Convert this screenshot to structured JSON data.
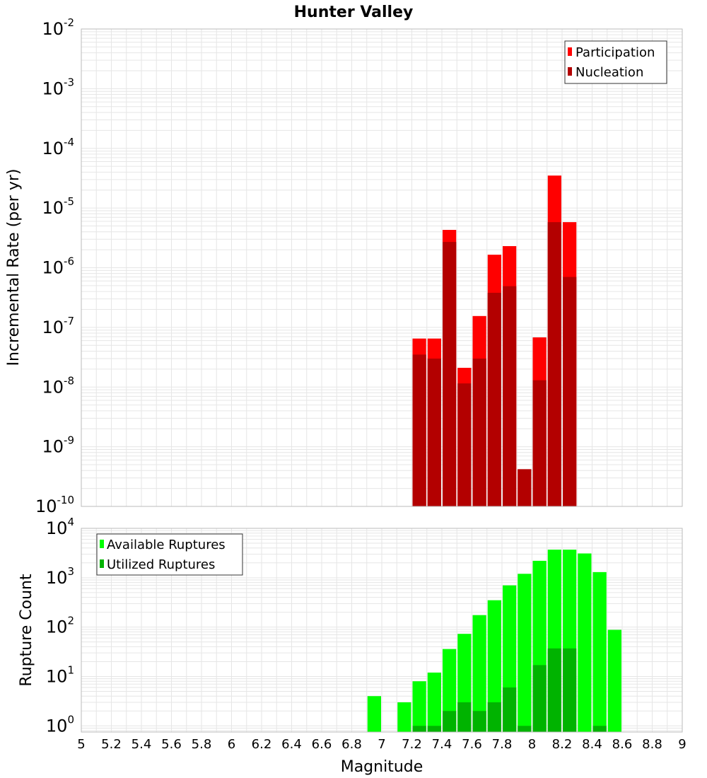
{
  "figure": {
    "title": "Hunter Valley",
    "xlabel": "Magnitude"
  },
  "colors": {
    "participation": "#ff0000",
    "nucleation": "#b30000",
    "available": "#00ff00",
    "utilized": "#00b300",
    "grid": "#e6e6e6",
    "frame": "#bbbbbb"
  },
  "chart_data": [
    {
      "type": "bar",
      "scale": "log",
      "ylabel": "Incremental Rate (per yr)",
      "ylim": [
        1e-10,
        0.01
      ],
      "xlim": [
        5,
        9
      ],
      "bin_width": 0.1,
      "legend": {
        "position": "top-right",
        "entries": [
          "Participation",
          "Nucleation"
        ]
      },
      "series": [
        {
          "name": "Participation",
          "x": [
            7.25,
            7.35,
            7.45,
            7.55,
            7.65,
            7.75,
            7.85,
            7.95,
            8.05,
            8.15,
            8.25
          ],
          "values": [
            6.5e-08,
            6.5e-08,
            4.3e-06,
            2.1e-08,
            1.55e-07,
            1.65e-06,
            2.3e-06,
            4.2e-10,
            6.8e-08,
            3.5e-05,
            5.8e-06
          ]
        },
        {
          "name": "Nucleation",
          "x": [
            7.25,
            7.35,
            7.45,
            7.55,
            7.65,
            7.75,
            7.85,
            7.95,
            8.05,
            8.15,
            8.25
          ],
          "values": [
            3.5e-08,
            3e-08,
            2.7e-06,
            1.15e-08,
            3e-08,
            3.8e-07,
            4.9e-07,
            4.2e-10,
            1.3e-08,
            5.8e-06,
            7e-07
          ]
        }
      ]
    },
    {
      "type": "bar",
      "scale": "log",
      "ylabel": "Rupture Count",
      "ylim": [
        0.75,
        10000.0
      ],
      "xlim": [
        5,
        9
      ],
      "bin_width": 0.1,
      "legend": {
        "position": "top-left",
        "entries": [
          "Available Ruptures",
          "Utilized Ruptures"
        ]
      },
      "series": [
        {
          "name": "Available Ruptures",
          "x": [
            6.95,
            7.15,
            7.25,
            7.35,
            7.45,
            7.55,
            7.65,
            7.75,
            7.85,
            7.95,
            8.05,
            8.15,
            8.25,
            8.35,
            8.45,
            8.55
          ],
          "values": [
            4,
            3,
            8,
            12,
            36,
            73,
            175,
            350,
            700,
            1200,
            2200,
            3700,
            3700,
            3100,
            1300,
            88
          ]
        },
        {
          "name": "Utilized Ruptures",
          "x": [
            7.25,
            7.35,
            7.45,
            7.55,
            7.65,
            7.75,
            7.85,
            7.95,
            8.05,
            8.15,
            8.25,
            8.45
          ],
          "values": [
            1,
            1,
            2,
            3,
            2,
            3,
            6,
            1,
            17,
            37,
            37,
            1
          ]
        }
      ]
    }
  ],
  "x_ticks": [
    "5",
    "5.2",
    "5.4",
    "5.6",
    "5.8",
    "6",
    "6.2",
    "6.4",
    "6.6",
    "6.8",
    "7",
    "7.2",
    "7.4",
    "7.6",
    "7.8",
    "8",
    "8.2",
    "8.4",
    "8.6",
    "8.8",
    "9"
  ],
  "top_y_ticks": [
    {
      "base": "10",
      "exp": "-10"
    },
    {
      "base": "10",
      "exp": "-9"
    },
    {
      "base": "10",
      "exp": "-8"
    },
    {
      "base": "10",
      "exp": "-7"
    },
    {
      "base": "10",
      "exp": "-6"
    },
    {
      "base": "10",
      "exp": "-5"
    },
    {
      "base": "10",
      "exp": "-4"
    },
    {
      "base": "10",
      "exp": "-3"
    },
    {
      "base": "10",
      "exp": "-2"
    }
  ],
  "bottom_y_ticks": [
    {
      "base": "10",
      "exp": "0"
    },
    {
      "base": "10",
      "exp": "1"
    },
    {
      "base": "10",
      "exp": "2"
    },
    {
      "base": "10",
      "exp": "3"
    },
    {
      "base": "10",
      "exp": "4"
    }
  ]
}
